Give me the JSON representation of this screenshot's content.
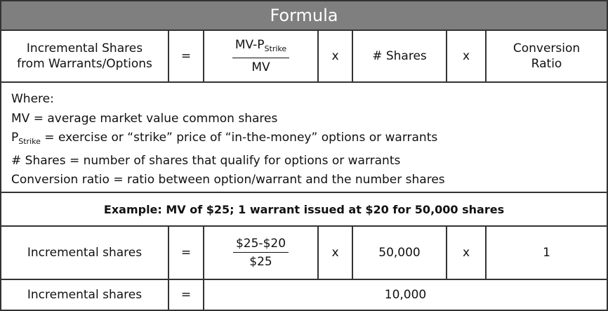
{
  "header": {
    "title": "Formula"
  },
  "formula_row": {
    "label_line1": "Incremental Shares",
    "label_line2": "from Warrants/Options",
    "equals": "=",
    "numerator_prefix": "MV-P",
    "numerator_sub": "Strike",
    "denominator": "MV",
    "times1": "x",
    "shares": "# Shares",
    "times2": "x",
    "ratio_line1": "Conversion",
    "ratio_line2": "Ratio"
  },
  "definitions": {
    "where": "Where:",
    "mv": "MV = average market value common shares",
    "pstrike_prefix": "P",
    "pstrike_sub": "Strike",
    "pstrike_rest": " = exercise or “strike” price of “in-the-money” options or warrants",
    "shares": "# Shares = number of shares that qualify for options or warrants",
    "conversion": "Conversion ratio = ratio between option/warrant and the number shares"
  },
  "example": {
    "text": "Example: MV of $25; 1 warrant issued at $20 for 50,000 shares"
  },
  "example_row": {
    "label": "Incremental shares",
    "equals": "=",
    "numerator": "$25-$20",
    "denominator": "$25",
    "times1": "x",
    "shares": "50,000",
    "times2": "x",
    "ratio": "1"
  },
  "result_row": {
    "label": "Incremental shares",
    "equals": "=",
    "value": "10,000"
  }
}
